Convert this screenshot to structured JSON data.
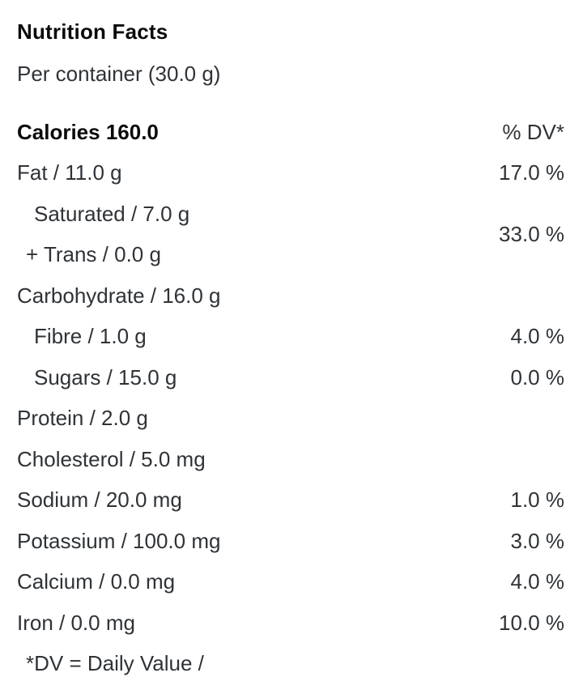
{
  "colors": {
    "background": "#ffffff",
    "text_bold": "#0a0a0a",
    "text_regular": "#2f3337"
  },
  "nutrition_facts": {
    "title": "Nutrition Facts",
    "serving": "Per container (30.0 g)",
    "header": {
      "calories_label": "Calories 160.0",
      "dv_label": "% DV*"
    },
    "rows": [
      {
        "label": "Fat / 11.0 g",
        "dv": "17.0 %"
      },
      {
        "lines": [
          "Saturated / 7.0 g",
          "+ Trans / 0.0 g"
        ],
        "dv": "33.0 %"
      },
      {
        "label": "Carbohydrate / 16.0 g",
        "dv": ""
      },
      {
        "label": "Fibre / 1.0 g",
        "dv": "4.0 %"
      },
      {
        "label": "Sugars / 15.0 g",
        "dv": "0.0 %"
      },
      {
        "label": "Protein / 2.0 g",
        "dv": ""
      },
      {
        "label": "Cholesterol / 5.0 mg",
        "dv": ""
      },
      {
        "label": "Sodium / 20.0 mg",
        "dv": "1.0 %"
      },
      {
        "label": "Potassium / 100.0 mg",
        "dv": "3.0 %"
      },
      {
        "label": "Calcium / 0.0 mg",
        "dv": "4.0 %"
      },
      {
        "label": "Iron / 0.0 mg",
        "dv": "10.0 %"
      }
    ],
    "footnote": "*DV = Daily Value /"
  }
}
